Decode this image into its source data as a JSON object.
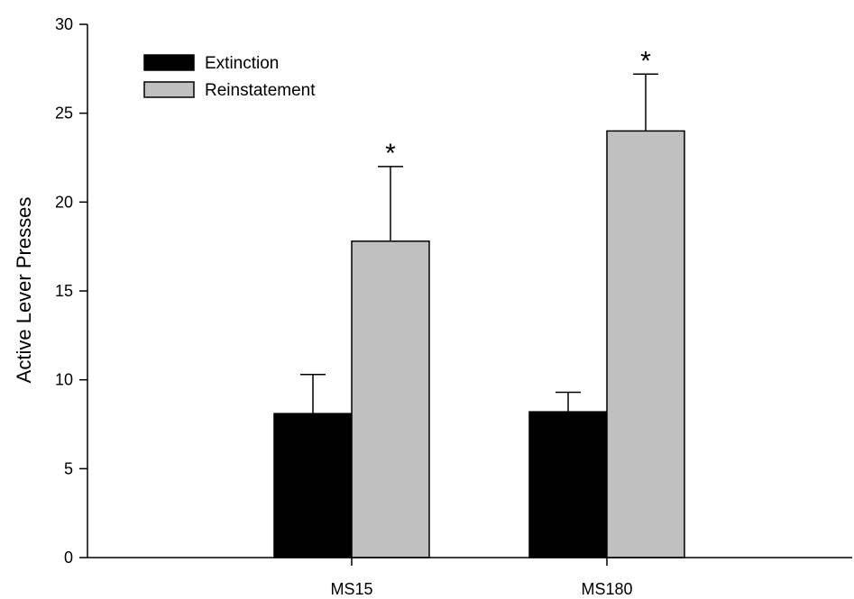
{
  "chart_data": {
    "type": "bar",
    "title": "",
    "xlabel": "",
    "ylabel": "Active Lever Presses",
    "ylim": [
      0,
      30
    ],
    "yticks": [
      0,
      5,
      10,
      15,
      20,
      25,
      30
    ],
    "categories": [
      "MS15",
      "MS180"
    ],
    "series": [
      {
        "name": "Extinction",
        "color": "#000000",
        "values": [
          8.1,
          8.2
        ],
        "errors": [
          2.2,
          1.1
        ]
      },
      {
        "name": "Reinstatement",
        "color": "#c0c0c0",
        "values": [
          17.8,
          24.0
        ],
        "errors": [
          4.2,
          3.2
        ]
      }
    ],
    "annotations": [
      {
        "category": "MS15",
        "series": "Reinstatement",
        "text": "*"
      },
      {
        "category": "MS180",
        "series": "Reinstatement",
        "text": "*"
      }
    ],
    "legend": {
      "placement": "top-left"
    },
    "grid": false
  }
}
